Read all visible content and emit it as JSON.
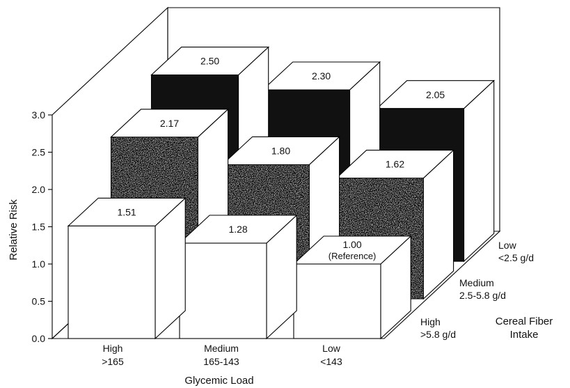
{
  "chart_data": {
    "type": "bar",
    "subtype": "3d-grouped",
    "title": "",
    "xlabel": "Glycemic Load",
    "ylabel": "Relative Risk",
    "zlabel": [
      "Cereal Fiber",
      "Intake"
    ],
    "ylim": [
      0,
      3.0
    ],
    "yticks": [
      "0.0",
      "0.5",
      "1.0",
      "1.5",
      "2.0",
      "2.5",
      "3.0"
    ],
    "categories": [
      {
        "line1": "High",
        "line2": ">165"
      },
      {
        "line1": "Medium",
        "line2": "165-143"
      },
      {
        "line1": "Low",
        "line2": "<143"
      }
    ],
    "depth_categories": [
      {
        "line1": "High",
        "line2": ">5.8 g/d"
      },
      {
        "line1": "Medium",
        "line2": "2.5-5.8 g/d"
      },
      {
        "line1": "Low",
        "line2": "<2.5 g/d"
      }
    ],
    "series": [
      {
        "fill": "#ffffff",
        "values": [
          1.51,
          1.28,
          1.0
        ],
        "labels": [
          "1.51",
          "1.28",
          "1.00"
        ]
      },
      {
        "fill": "#8c8c8c",
        "values": [
          2.17,
          1.8,
          1.62
        ],
        "labels": [
          "2.17",
          "1.80",
          "1.62"
        ]
      },
      {
        "fill": "#111111",
        "values": [
          2.5,
          2.3,
          2.05
        ],
        "labels": [
          "2.50",
          "2.30",
          "2.05"
        ]
      }
    ],
    "annotation": "(Reference)",
    "grid": false,
    "legend": "none"
  }
}
